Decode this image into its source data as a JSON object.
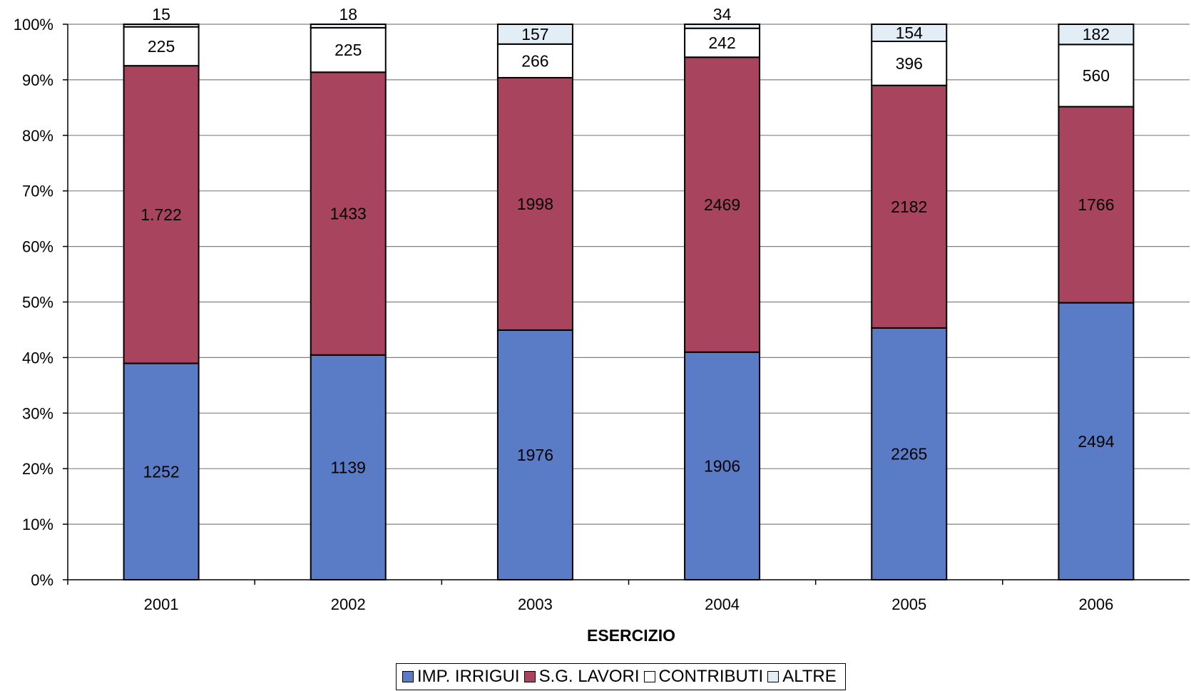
{
  "chart_data": {
    "type": "bar",
    "stacked": true,
    "normalized": true,
    "categories": [
      "2001",
      "2002",
      "2003",
      "2004",
      "2005",
      "2006"
    ],
    "series": [
      {
        "name": "IMP. IRRIGUI",
        "color": "#5a7bc6",
        "values": [
          1252,
          1139,
          1976,
          1906,
          2265,
          2494
        ],
        "labels": [
          "1252",
          "1139",
          "1976",
          "1906",
          "2265",
          "2494"
        ]
      },
      {
        "name": "S.G. LAVORI",
        "color": "#a8445e",
        "values": [
          1722,
          1433,
          1998,
          2469,
          2182,
          1766
        ],
        "labels": [
          "1.722",
          "1433",
          "1998",
          "2469",
          "2182",
          "1766"
        ]
      },
      {
        "name": "CONTRIBUTI",
        "color": "#ffffff",
        "values": [
          225,
          225,
          266,
          242,
          396,
          560
        ],
        "labels": [
          "225",
          "225",
          "266",
          "242",
          "396",
          "560"
        ]
      },
      {
        "name": "ALTRE",
        "color": "#e3edf6",
        "values": [
          15,
          18,
          157,
          34,
          154,
          182
        ],
        "labels": [
          "15",
          "18",
          "157",
          "34",
          "154",
          "182"
        ]
      }
    ],
    "yticks": [
      "0%",
      "10%",
      "20%",
      "30%",
      "40%",
      "50%",
      "60%",
      "70%",
      "80%",
      "90%",
      "100%"
    ],
    "ylim": [
      0,
      100
    ],
    "xlabel": "ESERCIZIO",
    "ylabel": "",
    "title": "",
    "grid": true,
    "legend_position": "bottom"
  }
}
